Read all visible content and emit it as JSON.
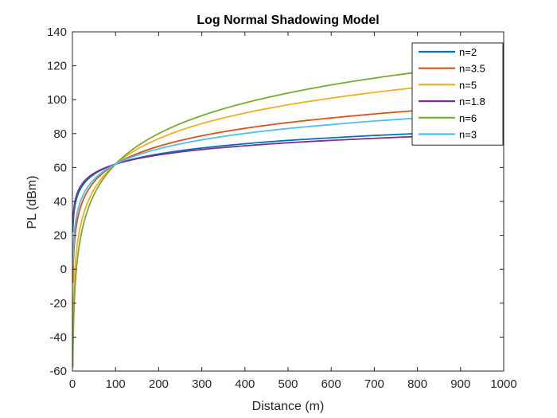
{
  "chart_data": {
    "type": "line",
    "title": "Log Normal Shadowing Model",
    "xlabel": "Distance (m)",
    "ylabel": "PL (dBm)",
    "xlim": [
      0,
      1000
    ],
    "ylim": [
      -60,
      140
    ],
    "xticks": [
      0,
      100,
      200,
      300,
      400,
      500,
      600,
      700,
      800,
      900,
      1000
    ],
    "yticks": [
      -60,
      -40,
      -20,
      0,
      20,
      40,
      60,
      80,
      100,
      120,
      140
    ],
    "grid": false,
    "legend_position": "top-right",
    "series": [
      {
        "name": "n=2",
        "color": "#0072BD",
        "x": [
          1,
          2,
          5,
          10,
          20,
          50,
          100,
          200,
          300,
          400,
          500,
          600,
          700,
          800,
          900,
          1000
        ],
        "y": [
          22,
          28,
          36,
          42,
          48,
          56,
          62,
          68,
          71.5,
          74,
          76,
          77.5,
          78.9,
          80,
          81.1,
          82
        ]
      },
      {
        "name": "n=3.5",
        "color": "#D95319",
        "x": [
          1,
          2,
          5,
          10,
          20,
          50,
          100,
          200,
          300,
          400,
          500,
          600,
          700,
          800,
          900,
          1000
        ],
        "y": [
          -8,
          2.5,
          16.5,
          27,
          37.5,
          51.5,
          62,
          72.5,
          78.7,
          83.1,
          86.5,
          89.2,
          91.6,
          93.6,
          95.4,
          97
        ]
      },
      {
        "name": "n=5",
        "color": "#EDB120",
        "x": [
          1,
          2,
          5,
          10,
          20,
          50,
          100,
          200,
          300,
          400,
          500,
          600,
          700,
          800,
          900,
          1000
        ],
        "y": [
          -38,
          -23,
          -3,
          12,
          27,
          47,
          62,
          77,
          85.9,
          92.1,
          97,
          100.9,
          104.3,
          107.2,
          109.7,
          112
        ]
      },
      {
        "name": "n=1.8",
        "color": "#7E2F8E",
        "x": [
          1,
          2,
          5,
          10,
          20,
          50,
          100,
          200,
          300,
          400,
          500,
          600,
          700,
          800,
          900,
          1000
        ],
        "y": [
          26,
          31.4,
          38.6,
          44,
          49.4,
          56.6,
          62,
          67.4,
          70.6,
          72.8,
          74.6,
          76,
          77.2,
          78.3,
          79.2,
          80
        ]
      },
      {
        "name": "n=6",
        "color": "#77AC30",
        "x": [
          1,
          2,
          5,
          10,
          20,
          50,
          100,
          200,
          300,
          400,
          500,
          600,
          700,
          800,
          900,
          1000
        ],
        "y": [
          -58,
          -40,
          -16,
          2,
          20,
          44,
          62,
          80,
          90.6,
          98.1,
          103.9,
          108.7,
          112.7,
          116.2,
          119.3,
          122
        ]
      },
      {
        "name": "n=3",
        "color": "#4DBEEE",
        "x": [
          1,
          2,
          5,
          10,
          20,
          50,
          100,
          200,
          300,
          400,
          500,
          600,
          700,
          800,
          900,
          1000
        ],
        "y": [
          2,
          11,
          23,
          32,
          41,
          53,
          62,
          71,
          76.3,
          80.1,
          83,
          85.3,
          87.4,
          89.1,
          90.6,
          92
        ]
      }
    ]
  }
}
